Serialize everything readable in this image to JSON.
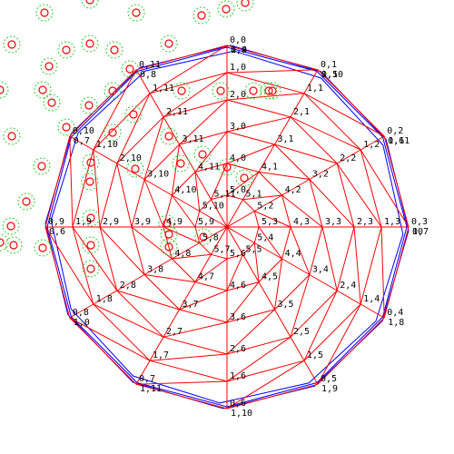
{
  "colors": {
    "background": "#ffffff",
    "outer_polygons": "#0000ff",
    "mesh_edges": "#ff0000",
    "node_labels": "#000000",
    "marker_outer": "#33cc33",
    "marker_inner": "#ff0000"
  },
  "mesh": {
    "rings": 6,
    "sectors": 12,
    "center_label": "",
    "node_labels": [
      [
        "0,0",
        "0,1",
        "0,2",
        "0,3",
        "0,4",
        "0,5",
        "0,6",
        "0,7",
        "0,8",
        "0,9",
        "0,10",
        "0,11"
      ],
      [
        "1,0",
        "1,1",
        "1,2",
        "1,3",
        "1,4",
        "1,5",
        "1,6",
        "1,7",
        "1,8",
        "1,9",
        "1,10",
        "1,11"
      ],
      [
        "2,0",
        "2,1",
        "2,2",
        "2,3",
        "2,4",
        "2,5",
        "2,6",
        "2,7",
        "2,8",
        "2,9",
        "2,10",
        "2,11"
      ],
      [
        "3,0",
        "3,1",
        "3,2",
        "3,3",
        "3,4",
        "3,5",
        "3,6",
        "3,7",
        "3,8",
        "3,9",
        "3,10",
        "3,11"
      ],
      [
        "4,0",
        "4,1",
        "4,2",
        "4,3",
        "4,4",
        "4,5",
        "4,6",
        "4,7",
        "4,8",
        "4,9",
        "4,10",
        "4,11"
      ],
      [
        "5,0",
        "5,1",
        "5,2",
        "5,3",
        "5,4",
        "5,5",
        "5,6",
        "5,7",
        "5,8",
        "5,9",
        "5,10",
        "5,11"
      ]
    ],
    "extra_labels": [
      "1,4",
      "1,5",
      "1,6",
      "1,7",
      "1,8",
      "1,9",
      "1,10",
      "1,11",
      "1,0",
      "0,6",
      "0,7",
      "0,8",
      "0,9",
      "0,10",
      "0,11",
      "00"
    ]
  },
  "markers_count_visible": 48
}
